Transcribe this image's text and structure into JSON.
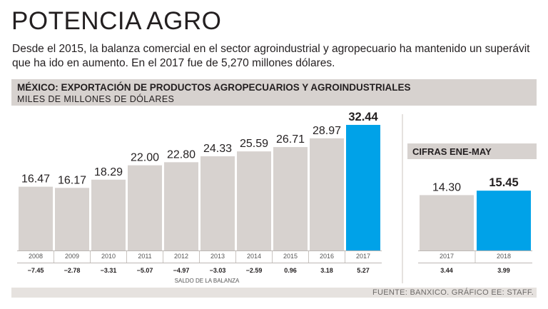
{
  "title": "POTENCIA AGRO",
  "subtitle": "Desde el 2015, la balanza comercial en el sector agroindustrial y agropecuario ha mantenido un superávit que ha ido en aumento. En el 2017 fue de 5,270 millones dólares.",
  "source": "FUENTE: BANXICO. GRÁFICO EE: STAFF.",
  "colors": {
    "bar": "#d7d2cf",
    "highlight": "#00a2e8",
    "band": "#e6e2df",
    "text": "#231f20"
  },
  "chart_data": [
    {
      "type": "bar",
      "title": "MÉXICO: EXPORTACIÓN DE PRODUCTOS AGROPECUARIOS Y AGROINDUSTRIALES",
      "ylabel": "MILES DE MILLONES DE DÓLARES",
      "categories": [
        "2008",
        "2009",
        "2010",
        "2011",
        "2012",
        "2013",
        "2014",
        "2015",
        "2016",
        "2017"
      ],
      "values": [
        16.47,
        16.17,
        18.29,
        22.0,
        22.8,
        24.33,
        25.59,
        26.71,
        28.97,
        32.44
      ],
      "value_labels": [
        "16.47",
        "16.17",
        "18.29",
        "22.00",
        "22.80",
        "24.33",
        "25.59",
        "26.71",
        "28.97",
        "32.44"
      ],
      "highlight": "2017",
      "balance_label": "SALDO DE LA BALANZA",
      "balance": [
        "−7.45",
        "−2.78",
        "−3.31",
        "−5.07",
        "−4.97",
        "−3.03",
        "−2.59",
        "0.96",
        "3.18",
        "5.27"
      ],
      "ylim": [
        0,
        32.44
      ]
    },
    {
      "type": "bar",
      "title": "CIFRAS ENE-MAY",
      "categories": [
        "2017",
        "2018"
      ],
      "values": [
        14.3,
        15.45
      ],
      "value_labels": [
        "14.30",
        "15.45"
      ],
      "highlight": "2018",
      "balance": [
        "3.44",
        "3.99"
      ],
      "ylim": [
        0,
        32.44
      ]
    }
  ]
}
